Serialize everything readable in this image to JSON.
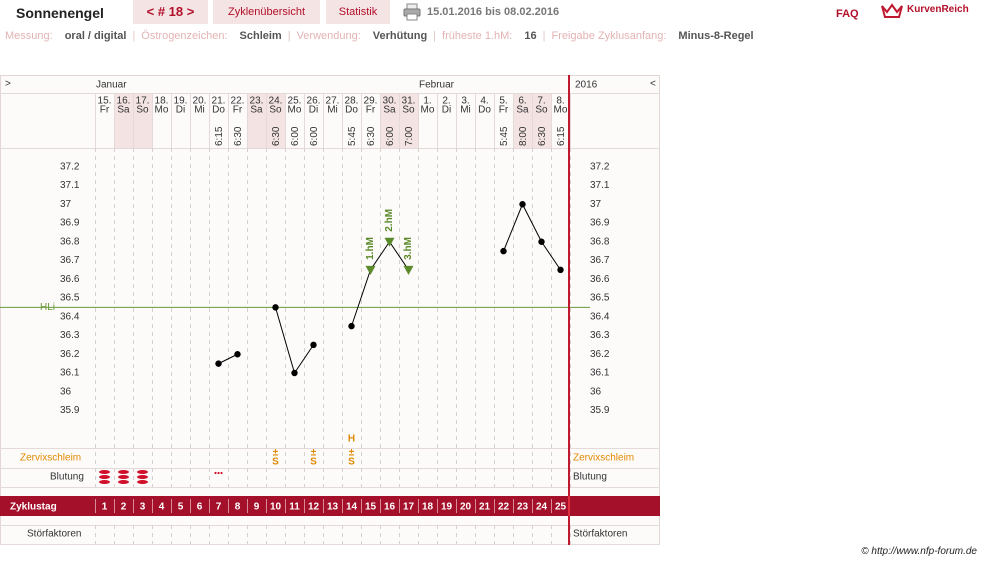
{
  "header": {
    "title": "Sonnenengel",
    "cycle_nav": "< # 18 >",
    "tabs": [
      "Zyklenübersicht",
      "Statistik"
    ],
    "date_range": "15.01.2016 bis 08.02.2016",
    "faq": "FAQ",
    "logo": "KurvenReich"
  },
  "settings": [
    {
      "label": "Messung:",
      "value": "oral / digital"
    },
    {
      "label": "Östrogenzeichen:",
      "value": "Schleim"
    },
    {
      "label": "Verwendung:",
      "value": "Verhütung"
    },
    {
      "label": "früheste 1.hM:",
      "value": "16"
    },
    {
      "label": "Freigabe Zyklusanfang:",
      "value": "Minus-8-Regel"
    }
  ],
  "chart_data": {
    "type": "line",
    "nav_left": ">",
    "nav_right": "<",
    "year": "2016",
    "months": [
      {
        "label": "Januar",
        "day": 1
      },
      {
        "label": "Februar",
        "day": 18
      }
    ],
    "categories": [
      1,
      2,
      3,
      4,
      5,
      6,
      7,
      8,
      9,
      10,
      11,
      12,
      13,
      14,
      15,
      16,
      17,
      18,
      19,
      20,
      21,
      22,
      23,
      24,
      25
    ],
    "dates": [
      "15.",
      "16.",
      "17.",
      "18.",
      "19.",
      "20.",
      "21.",
      "22.",
      "23.",
      "24.",
      "25.",
      "26.",
      "27.",
      "28.",
      "29.",
      "30.",
      "31.",
      "1.",
      "2.",
      "3.",
      "4.",
      "5.",
      "6.",
      "7.",
      "8."
    ],
    "weekdays": [
      "Fr",
      "Sa",
      "So",
      "Mo",
      "Di",
      "Mi",
      "Do",
      "Fr",
      "Sa",
      "So",
      "Mo",
      "Di",
      "Mi",
      "Do",
      "Fr",
      "Sa",
      "So",
      "Mo",
      "Di",
      "Mi",
      "Do",
      "Fr",
      "Sa",
      "So",
      "Mo"
    ],
    "times": [
      null,
      null,
      null,
      null,
      null,
      null,
      "6:15",
      "6:30",
      null,
      "6:30",
      "6:00",
      "6:00",
      null,
      "5:45",
      "6:30",
      "6:00",
      "7:00",
      null,
      null,
      null,
      null,
      "5:45",
      "8:00",
      "6:30",
      "6:15"
    ],
    "values": [
      null,
      null,
      null,
      null,
      null,
      null,
      36.15,
      36.2,
      null,
      36.45,
      36.1,
      36.25,
      null,
      36.35,
      36.65,
      36.8,
      36.65,
      null,
      null,
      null,
      null,
      36.75,
      37.0,
      36.8,
      36.65
    ],
    "color": "#000000",
    "ylim": [
      35.7,
      37.3
    ],
    "yticks": [
      37.2,
      37.1,
      37,
      36.9,
      36.8,
      36.7,
      36.6,
      36.5,
      36.4,
      36.3,
      36.2,
      36.1,
      36,
      35.9
    ],
    "hli": {
      "label": "HLi",
      "value": 36.45,
      "color": "#6a9a3a"
    },
    "markers": [
      {
        "day": 15,
        "label": "1.hM"
      },
      {
        "day": 16,
        "label": "2.hM"
      },
      {
        "day": 17,
        "label": "3.hM"
      }
    ],
    "marker_color": "#5a8a2a",
    "row_labels": {
      "cervix": "Zervixschleim",
      "bleeding": "Blutung",
      "cycle_day": "Zyklustag",
      "disturbances": "Störfaktoren"
    },
    "cervix": [
      {
        "day": 10,
        "sign": "±",
        "symbol": "S"
      },
      {
        "day": 12,
        "sign": "±",
        "symbol": "S"
      },
      {
        "day": 14,
        "sign": "±",
        "symbol": "S"
      }
    ],
    "peak": {
      "day": 14,
      "label": "H"
    },
    "bleeding_days": [
      1,
      2,
      3
    ],
    "spotting_days": [
      7
    ]
  },
  "footer": "© http://www.nfp-forum.de"
}
